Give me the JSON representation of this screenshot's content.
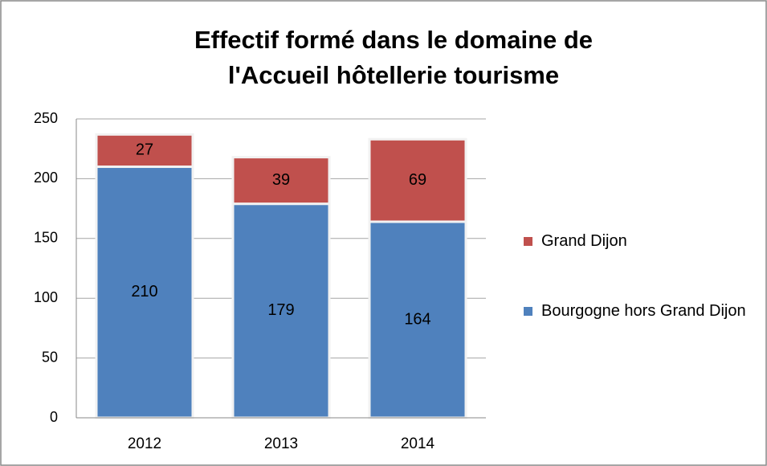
{
  "chart_data": {
    "type": "stacked_bar",
    "title": [
      "Effectif formé dans le domaine  de",
      "l'Accueil hôtellerie tourisme"
    ],
    "categories": [
      "2012",
      "2013",
      "2014"
    ],
    "series": [
      {
        "name": "Bourgogne hors  Grand Dijon",
        "color": "#4f81bd",
        "values": [
          210,
          179,
          164
        ]
      },
      {
        "name": "Grand Dijon",
        "color": "#c0504d",
        "values": [
          27,
          39,
          69
        ]
      }
    ],
    "ylim": [
      0,
      250
    ],
    "yticks": [
      0,
      50,
      100,
      150,
      200,
      250
    ],
    "grid": true,
    "legend": "right"
  }
}
